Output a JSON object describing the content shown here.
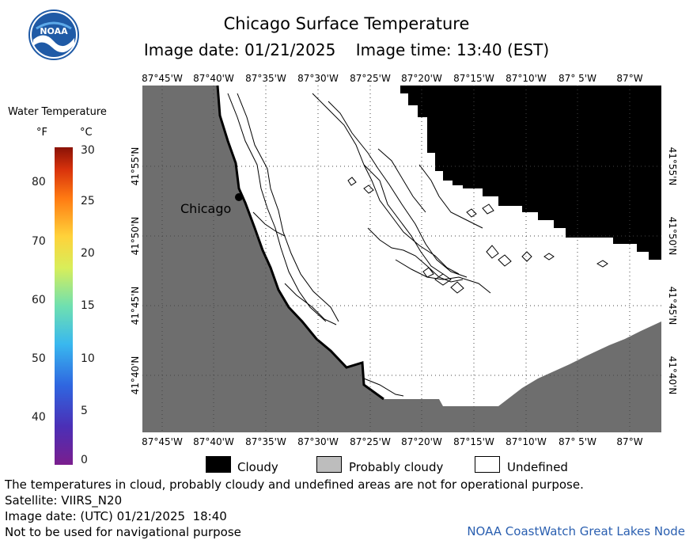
{
  "header": {
    "title": "Chicago Surface Temperature",
    "subtitle": "Image date: 01/21/2025    Image time: 13:40 (EST)",
    "logo_text": "NOAA"
  },
  "legend": {
    "title": "Water Temperature",
    "unit_f": "°F",
    "unit_c": "°C",
    "fahrenheit_ticks": [
      "80",
      "70",
      "60",
      "50",
      "40"
    ],
    "celsius_ticks": [
      "30",
      "25",
      "20",
      "15",
      "10",
      "5",
      "0"
    ]
  },
  "map": {
    "longitude_labels": [
      "87°45'W",
      "87°40'W",
      "87°35'W",
      "87°30'W",
      "87°25'W",
      "87°20'W",
      "87°15'W",
      "87°10'W",
      "87° 5'W",
      "87°W"
    ],
    "latitude_labels": [
      "41°55'N",
      "41°50'N",
      "41°45'N",
      "41°40'N"
    ],
    "city_label": "Chicago",
    "colors": {
      "land": "#6e6e6e",
      "cloud": "#000000",
      "undefined": "#ffffff",
      "probably_cloudy": "#bdbdbd"
    }
  },
  "key": {
    "cloudy": "Cloudy",
    "probably_cloudy": "Probably cloudy",
    "undefined": "Undefined"
  },
  "footer": {
    "disclaimer": "The temperatures in cloud, probably cloudy and undefined areas are not for operational purpose.",
    "satellite": "Satellite: VIIRS_N20",
    "utc_date": "Image date: (UTC) 01/21/2025  18:40",
    "nav_warning": "Not to be used for navigational purpose",
    "credit": "NOAA CoastWatch Great Lakes Node"
  }
}
